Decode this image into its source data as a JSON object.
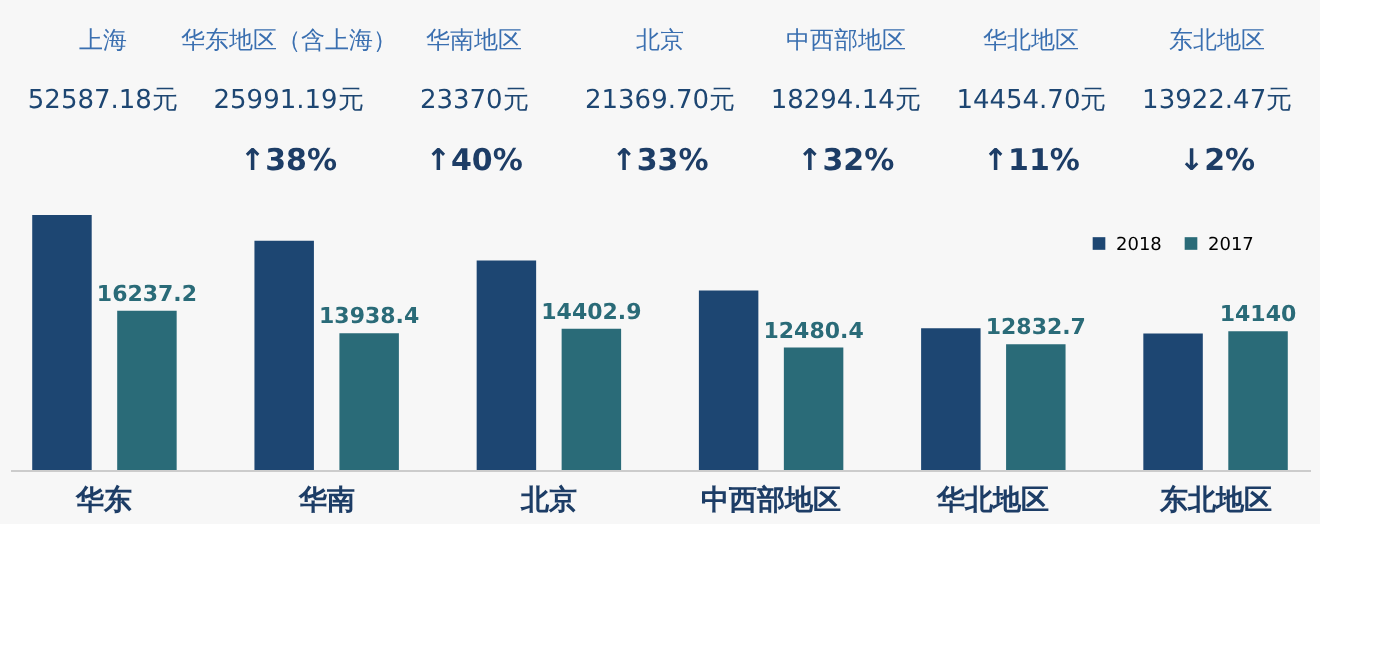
{
  "chart_data": {
    "type": "bar",
    "categories": [
      "华东",
      "华南",
      "北京",
      "中西部地区",
      "华北地区",
      "东北地区"
    ],
    "series": [
      {
        "name": "2018",
        "color": "#1d4672",
        "values": [
          25991.19,
          23370,
          21369.7,
          18294.14,
          14454.7,
          13922.47
        ]
      },
      {
        "name": "2017",
        "color": "#2a6b78",
        "values": [
          16237.2,
          13938.4,
          14402.9,
          12480.4,
          12832.7,
          14140
        ],
        "value_labels": [
          "16237.2",
          "13938.4",
          "14402.9",
          "12480.4",
          "12832.7",
          "14140"
        ]
      }
    ],
    "legend": "top right",
    "grid": false,
    "annotations": [
      "上海",
      "52587.18元",
      "华东地区（含上海）",
      "25991.19元",
      "华南地区",
      "23370元",
      "北京",
      "21369.70元",
      "中西部地区",
      "18294.14元",
      "华北地区",
      "14454.70元",
      "东北地区",
      "13922.47元",
      "↑38%",
      "↑40%",
      "↑33%",
      "↑32%",
      "↑11%",
      "↓2%"
    ]
  }
}
